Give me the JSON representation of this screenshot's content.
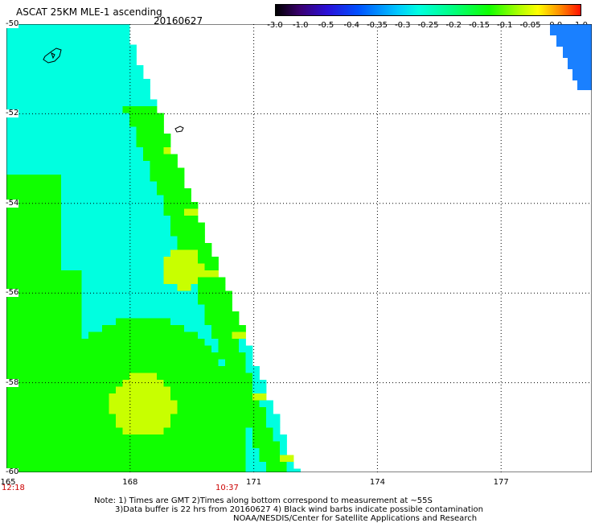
{
  "header": {
    "title": "ASCAT 25KM MLE-1 ascending",
    "date": "20160627"
  },
  "colorbar": {
    "ticks": [
      "-3.0",
      "-1.0",
      "-0.5",
      "-0.4",
      "-0.35",
      "-0.3",
      "-0.25",
      "-0.2",
      "-0.15",
      "-0.1",
      "-0.05",
      "0.0",
      "1.0"
    ],
    "colors": [
      "#000000",
      "#3a0070",
      "#2a10d8",
      "#0050ff",
      "#00c8ff",
      "#00ffe0",
      "#00ff80",
      "#10ff00",
      "#b0ff00",
      "#ffff00",
      "#ff9000",
      "#ff1000"
    ]
  },
  "map": {
    "lat_labels": [
      "-50",
      "-52",
      "-54",
      "-56",
      "-58",
      "-60"
    ],
    "lon_labels": [
      "165",
      "168",
      "171",
      "174",
      "177"
    ],
    "lat_range": [
      -60,
      -50
    ],
    "lon_range": [
      165,
      179.2
    ],
    "swath_color_main": "#00ffe0",
    "swath_color_secondary": "#10ff00",
    "swath_color_highlight": "#c8ff00",
    "corner_swath_color": "#1a80ff"
  },
  "times": {
    "left": "12:18",
    "mid": "10:37"
  },
  "notes": {
    "line1": "Note: 1) Times are GMT 2)Times along bottom correspond to measurement at ~55S",
    "line2": "3)Data buffer is 22 hrs from 20160627 4) Black wind barbs indicate possible contamination",
    "line3": "NOAA/NESDIS/Center for Satellite Applications and Research"
  }
}
